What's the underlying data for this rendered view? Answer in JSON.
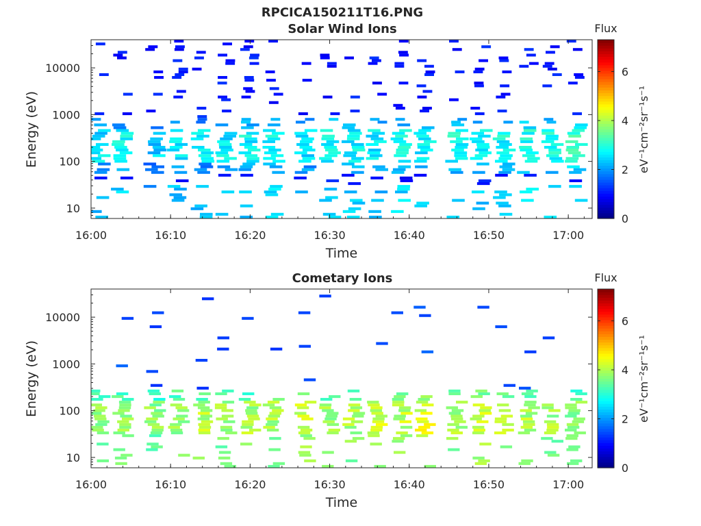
{
  "figure": {
    "title": "RPCICA150211T16.PNG"
  },
  "chart_data": [
    {
      "type": "heatmap",
      "title": "Solar Wind Ions",
      "xlabel": "Time",
      "ylabel": "Energy (eV)",
      "y_scale": "log",
      "xlim": [
        "16:00",
        "17:03"
      ],
      "ylim": [
        6,
        40000
      ],
      "x_ticks": [
        "16:00",
        "16:10",
        "16:20",
        "16:30",
        "16:40",
        "16:50",
        "17:00"
      ],
      "y_ticks": [
        "10",
        "100",
        "1000",
        "10000"
      ],
      "colorbar": {
        "title": "Flux",
        "label": "eV⁻¹cm⁻²sr⁻¹s⁻¹",
        "range": [
          0,
          7.3
        ],
        "ticks": [
          "0",
          "2",
          "4",
          "6"
        ],
        "colormap": "jet"
      },
      "scans": [
        {
          "t": "16:01",
          "low_flux": 2.5,
          "high_flux": 0.8
        },
        {
          "t": "16:04",
          "low_flux": 2.7,
          "high_flux": 0.8
        },
        {
          "t": "16:08",
          "low_flux": 2.4,
          "high_flux": 0.8
        },
        {
          "t": "16:11",
          "low_flux": 2.6,
          "high_flux": 0.8
        },
        {
          "t": "16:14",
          "low_flux": 2.5,
          "high_flux": 0.8
        },
        {
          "t": "16:17",
          "low_flux": 2.6,
          "high_flux": 0.8
        },
        {
          "t": "16:20",
          "low_flux": 2.7,
          "high_flux": 0.8
        },
        {
          "t": "16:23",
          "low_flux": 2.8,
          "high_flux": 0.8
        },
        {
          "t": "16:27",
          "low_flux": 2.6,
          "high_flux": 0.8
        },
        {
          "t": "16:30",
          "low_flux": 2.8,
          "high_flux": 0.8
        },
        {
          "t": "16:33",
          "low_flux": 2.7,
          "high_flux": 0.8
        },
        {
          "t": "16:36",
          "low_flux": 2.6,
          "high_flux": 0.8
        },
        {
          "t": "16:39",
          "low_flux": 2.8,
          "high_flux": 0.8
        },
        {
          "t": "16:42",
          "low_flux": 2.7,
          "high_flux": 0.8
        },
        {
          "t": "16:46",
          "low_flux": 2.8,
          "high_flux": 0.8
        },
        {
          "t": "16:49",
          "low_flux": 2.7,
          "high_flux": 0.8
        },
        {
          "t": "16:52",
          "low_flux": 2.8,
          "high_flux": 0.8
        },
        {
          "t": "16:55",
          "low_flux": 2.9,
          "high_flux": 0.8
        },
        {
          "t": "16:58",
          "low_flux": 2.9,
          "high_flux": 0.8
        },
        {
          "t": "17:01",
          "low_flux": 3.0,
          "high_flux": 0.8
        }
      ]
    },
    {
      "type": "heatmap",
      "title": "Cometary Ions",
      "xlabel": "Time",
      "ylabel": "Energy (eV)",
      "y_scale": "log",
      "xlim": [
        "16:00",
        "17:03"
      ],
      "ylim": [
        6,
        40000
      ],
      "x_ticks": [
        "16:00",
        "16:10",
        "16:20",
        "16:30",
        "16:40",
        "16:50",
        "17:00"
      ],
      "y_ticks": [
        "10",
        "100",
        "1000",
        "10000"
      ],
      "colorbar": {
        "title": "Flux",
        "label": "eV⁻¹cm⁻²sr⁻¹s⁻¹",
        "range": [
          0,
          7.3
        ],
        "ticks": [
          "0",
          "2",
          "4",
          "6"
        ],
        "colormap": "jet"
      },
      "scans": [
        {
          "t": "16:01",
          "low_flux": 3.8,
          "high_flux": 1.2
        },
        {
          "t": "16:04",
          "low_flux": 3.9,
          "high_flux": 1.2
        },
        {
          "t": "16:08",
          "low_flux": 3.7,
          "high_flux": 1.2
        },
        {
          "t": "16:11",
          "low_flux": 3.9,
          "high_flux": 1.2
        },
        {
          "t": "16:14",
          "low_flux": 4.0,
          "high_flux": 1.2
        },
        {
          "t": "16:17",
          "low_flux": 3.8,
          "high_flux": 1.2
        },
        {
          "t": "16:20",
          "low_flux": 3.9,
          "high_flux": 1.2
        },
        {
          "t": "16:23",
          "low_flux": 4.0,
          "high_flux": 1.2
        },
        {
          "t": "16:27",
          "low_flux": 4.1,
          "high_flux": 1.2
        },
        {
          "t": "16:30",
          "low_flux": 3.9,
          "high_flux": 1.2
        },
        {
          "t": "16:33",
          "low_flux": 4.0,
          "high_flux": 1.2
        },
        {
          "t": "16:36",
          "low_flux": 4.2,
          "high_flux": 1.2
        },
        {
          "t": "16:39",
          "low_flux": 4.1,
          "high_flux": 1.2
        },
        {
          "t": "16:42",
          "low_flux": 4.3,
          "high_flux": 1.2
        },
        {
          "t": "16:46",
          "low_flux": 4.0,
          "high_flux": 1.2
        },
        {
          "t": "16:49",
          "low_flux": 4.2,
          "high_flux": 1.2
        },
        {
          "t": "16:52",
          "low_flux": 4.1,
          "high_flux": 1.2
        },
        {
          "t": "16:55",
          "low_flux": 4.0,
          "high_flux": 1.2
        },
        {
          "t": "16:58",
          "low_flux": 3.9,
          "high_flux": 1.2
        },
        {
          "t": "17:01",
          "low_flux": 3.8,
          "high_flux": 1.2
        }
      ]
    }
  ]
}
